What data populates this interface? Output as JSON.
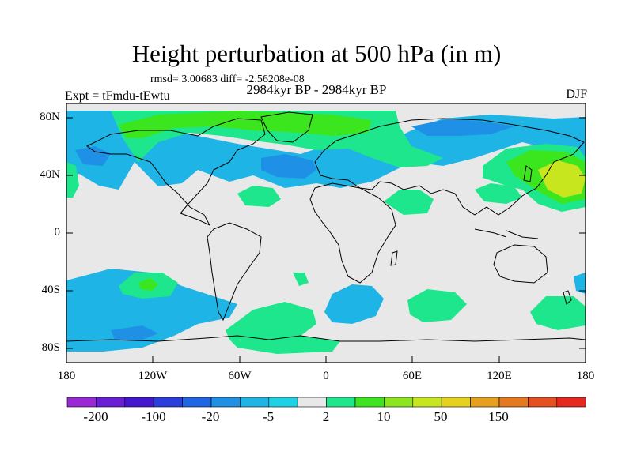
{
  "title": "Height perturbation at 500 hPa (in m)",
  "stats": "rmsd= 3.00683 diff= -2.56208e-08",
  "period": "2984kyr BP - 2984kyr BP",
  "experiment": "Expt = tFmdu-tEwtu",
  "season": "DJF",
  "axes": {
    "y_ticks": [
      "80N",
      "40N",
      "0",
      "40S",
      "80S"
    ],
    "x_ticks": [
      "180",
      "120W",
      "60W",
      "0",
      "60E",
      "120E",
      "180"
    ]
  },
  "colorbar": {
    "colors": [
      "#9a28d8",
      "#6a1ed8",
      "#4416d2",
      "#2a3ee0",
      "#1e66e6",
      "#1e90e6",
      "#1eb4e6",
      "#1ed2e6",
      "#e8e8e8",
      "#1ee68c",
      "#3ce61e",
      "#8ce61e",
      "#c8e61e",
      "#e6d21e",
      "#e6a01e",
      "#e6781e",
      "#e6501e",
      "#e6281e"
    ],
    "labels": [
      "-200",
      "-100",
      "-20",
      "-5",
      "2",
      "10",
      "50",
      "150"
    ]
  },
  "map": {
    "projection": "cylindrical equidistant",
    "lon_range": [
      -180,
      180
    ],
    "lat_range": [
      -90,
      90
    ],
    "field_colors": {
      "neutral": "#e8e8e8",
      "neg_light": "#1eb4e6",
      "neg_mid": "#1e90e6",
      "pos_light": "#1ee68c",
      "pos_mid": "#3ce61e",
      "pos_strong": "#8ce61e",
      "pos_max": "#c8e61e"
    }
  }
}
